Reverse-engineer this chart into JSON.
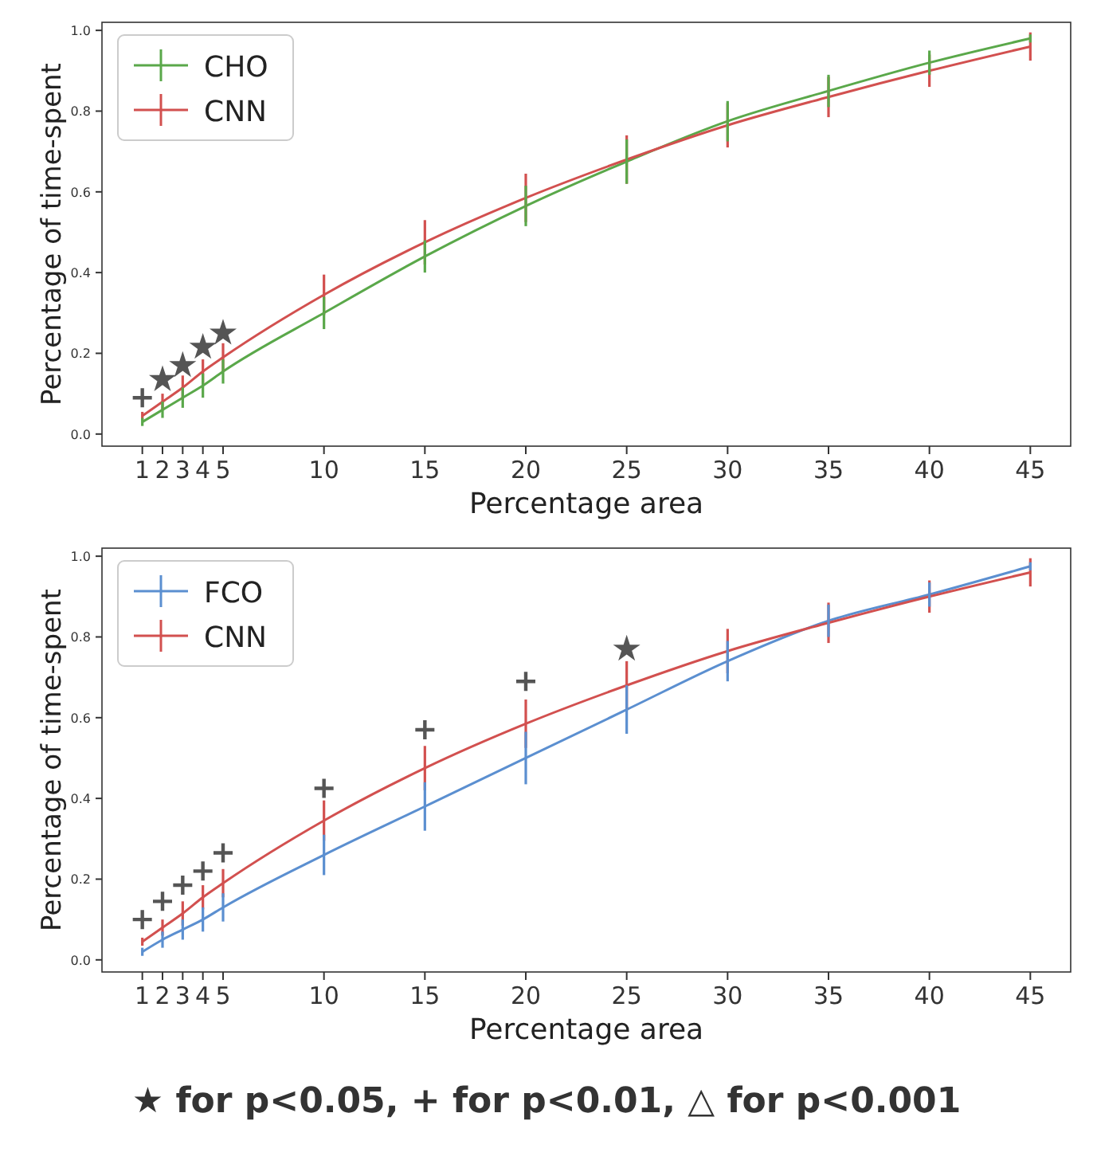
{
  "chart_data": [
    {
      "type": "line",
      "xlabel": "Percentage area",
      "ylabel": "Percentage of time-spent",
      "x": [
        1,
        2,
        3,
        4,
        5,
        10,
        15,
        20,
        25,
        30,
        35,
        40,
        45
      ],
      "xlim": [
        -1,
        47
      ],
      "xticks": [
        1,
        2,
        3,
        4,
        5,
        10,
        15,
        20,
        25,
        30,
        35,
        40,
        45
      ],
      "ylim": [
        -0.03,
        1.02
      ],
      "yticks": [
        {
          "value": 0,
          "label": "0.0"
        },
        {
          "value": 0.2,
          "label": "0.2"
        },
        {
          "value": 0.4,
          "label": "0.4"
        },
        {
          "value": 0.6,
          "label": "0.6"
        },
        {
          "value": 0.8,
          "label": "0.8"
        },
        {
          "value": 1,
          "label": "1.0"
        }
      ],
      "grid": false,
      "legend": "top left",
      "marker": "none",
      "line_style": "solid",
      "series": [
        {
          "name": "CHO",
          "color": "#5aa84a",
          "values": [
            0.03,
            0.06,
            0.09,
            0.12,
            0.155,
            0.3,
            0.44,
            0.565,
            0.675,
            0.775,
            0.85,
            0.92,
            0.98
          ],
          "errors": [
            0.01,
            0.02,
            0.025,
            0.03,
            0.03,
            0.04,
            0.04,
            0.05,
            0.055,
            0.05,
            0.04,
            0.03,
            0.01
          ]
        },
        {
          "name": "CNN",
          "color": "#d2504f",
          "values": [
            0.045,
            0.08,
            0.115,
            0.155,
            0.19,
            0.345,
            0.475,
            0.585,
            0.68,
            0.765,
            0.835,
            0.9,
            0.96
          ],
          "errors": [
            0.01,
            0.02,
            0.03,
            0.03,
            0.035,
            0.05,
            0.055,
            0.06,
            0.06,
            0.055,
            0.05,
            0.04,
            0.035
          ]
        },
        {
          "type": "scatter",
          "marker": "cross",
          "color": "#555555",
          "x": [
            1
          ],
          "values": [
            0.09
          ]
        },
        {
          "type": "scatter",
          "marker": "star",
          "color": "#555555",
          "x": [
            2,
            3,
            4,
            5
          ],
          "values": [
            0.135,
            0.17,
            0.215,
            0.25
          ]
        }
      ]
    },
    {
      "type": "line",
      "xlabel": "Percentage area",
      "ylabel": "Percentage of time-spent",
      "x": [
        1,
        2,
        3,
        4,
        5,
        10,
        15,
        20,
        25,
        30,
        35,
        40,
        45
      ],
      "xlim": [
        -1,
        47
      ],
      "xticks": [
        1,
        2,
        3,
        4,
        5,
        10,
        15,
        20,
        25,
        30,
        35,
        40,
        45
      ],
      "ylim": [
        -0.03,
        1.02
      ],
      "yticks": [
        {
          "value": 0,
          "label": "0.0"
        },
        {
          "value": 0.2,
          "label": "0.2"
        },
        {
          "value": 0.4,
          "label": "0.4"
        },
        {
          "value": 0.6,
          "label": "0.6"
        },
        {
          "value": 0.8,
          "label": "0.8"
        },
        {
          "value": 1,
          "label": "1.0"
        }
      ],
      "grid": false,
      "legend": "top left",
      "marker": "none",
      "line_style": "solid",
      "series": [
        {
          "type": "scatter",
          "marker": "cross",
          "color": "#555555",
          "x": [
            1,
            2,
            3,
            4,
            5,
            10,
            15,
            20
          ],
          "values": [
            0.1,
            0.145,
            0.185,
            0.22,
            0.265,
            0.425,
            0.57,
            0.69
          ]
        },
        {
          "type": "scatter",
          "marker": "star",
          "color": "#555555",
          "x": [
            25
          ],
          "values": [
            0.77
          ]
        },
        {
          "name": "FCO",
          "color": "#5b8fd0",
          "values": [
            0.02,
            0.05,
            0.075,
            0.1,
            0.13,
            0.26,
            0.38,
            0.5,
            0.62,
            0.74,
            0.84,
            0.905,
            0.975
          ],
          "errors": [
            0.01,
            0.02,
            0.025,
            0.03,
            0.035,
            0.05,
            0.06,
            0.065,
            0.06,
            0.05,
            0.04,
            0.03,
            0.01
          ]
        },
        {
          "name": "CNN",
          "color": "#d2504f",
          "values": [
            0.045,
            0.08,
            0.115,
            0.155,
            0.19,
            0.345,
            0.475,
            0.585,
            0.68,
            0.765,
            0.835,
            0.9,
            0.96
          ],
          "errors": [
            0.01,
            0.02,
            0.03,
            0.03,
            0.035,
            0.05,
            0.055,
            0.06,
            0.06,
            0.055,
            0.05,
            0.04,
            0.035
          ]
        }
      ],
      "annotations": [
        "★ for p<0.05, + for p<0.01, △ for p<0.001"
      ]
    }
  ]
}
